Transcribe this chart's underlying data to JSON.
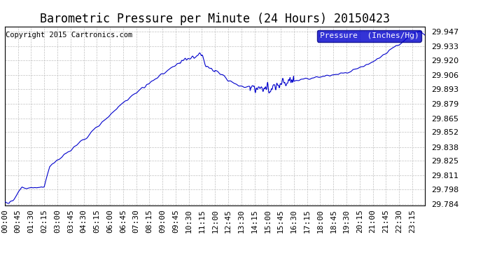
{
  "title": "Barometric Pressure per Minute (24 Hours) 20150423",
  "copyright": "Copyright 2015 Cartronics.com",
  "legend_label": "Pressure  (Inches/Hg)",
  "line_color": "#0000cc",
  "legend_bg": "#0000cc",
  "legend_text_color": "#ffffff",
  "background_color": "#ffffff",
  "grid_color": "#c0c0c0",
  "ylim_min": 29.784,
  "ylim_max": 29.947,
  "yticks": [
    29.784,
    29.798,
    29.811,
    29.825,
    29.838,
    29.852,
    29.865,
    29.879,
    29.893,
    29.906,
    29.92,
    29.933,
    29.947
  ],
  "xtick_labels": [
    "00:00",
    "00:45",
    "01:30",
    "02:15",
    "03:00",
    "03:45",
    "04:30",
    "05:15",
    "06:00",
    "06:45",
    "07:30",
    "08:15",
    "09:00",
    "09:45",
    "10:30",
    "11:15",
    "12:00",
    "12:45",
    "13:30",
    "14:15",
    "15:00",
    "15:45",
    "16:30",
    "17:15",
    "18:00",
    "18:45",
    "19:30",
    "20:15",
    "21:00",
    "21:45",
    "22:30",
    "23:15"
  ],
  "title_fontsize": 12,
  "tick_fontsize": 8,
  "copyright_fontsize": 7.5
}
